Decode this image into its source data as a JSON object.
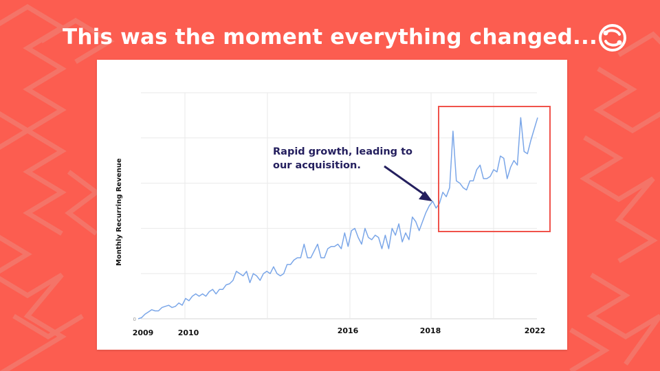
{
  "slide": {
    "title": "This was the moment everything changed..."
  },
  "logo": {
    "icon": "brand-logo-icon"
  },
  "colors": {
    "background": "#fc5d50",
    "pattern": "#f47468",
    "line": "#7aa6e8",
    "highlight": "#f0524a",
    "annotation": "#241f5e",
    "grid": "#e6e6e6"
  },
  "chart_data": {
    "type": "line",
    "title": "",
    "xlabel": "",
    "ylabel": "Monthly Recurring Revenue",
    "grid": true,
    "x_ticks": [
      "2009",
      "2010",
      "2016",
      "2018",
      "2022"
    ],
    "y_ticks": [
      "0"
    ],
    "y_range": [
      0,
      100
    ],
    "series": [
      {
        "values": [
          0,
          0.5,
          2,
          3,
          4,
          3.5,
          3.5,
          5,
          5.5,
          6,
          5,
          5.5,
          7,
          6,
          9,
          8,
          10,
          11,
          10,
          11,
          10,
          12,
          13,
          11,
          13,
          13,
          15,
          15.5,
          17,
          21,
          20,
          19,
          21,
          16,
          20,
          19,
          17,
          20,
          21,
          20,
          23,
          20,
          19,
          20,
          24,
          24,
          26,
          27,
          27,
          33,
          27,
          27,
          30,
          33,
          27,
          27,
          31,
          32,
          32,
          33,
          31,
          38,
          32,
          39,
          40,
          36,
          33,
          40,
          36,
          35,
          37,
          36,
          31,
          37,
          31,
          40,
          37,
          42,
          34,
          38,
          35,
          45,
          43,
          39,
          43,
          47,
          50,
          52,
          49,
          51,
          56,
          54,
          58,
          83,
          61,
          60,
          58,
          57,
          61,
          61,
          66,
          68,
          62,
          62,
          63,
          66,
          65,
          72,
          71,
          62,
          67,
          70,
          68,
          89,
          74,
          73,
          79,
          84,
          89
        ]
      }
    ],
    "annotation": {
      "line1": "Rapid growth, leading to",
      "line2": "our acquisition."
    }
  }
}
